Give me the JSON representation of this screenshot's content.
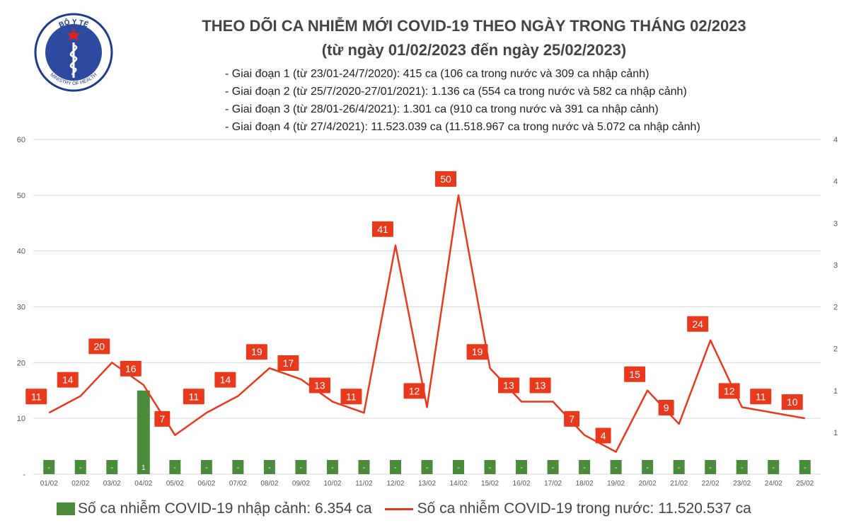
{
  "logo": {
    "top_text": "BỘ Y TẾ",
    "bottom_text": "MINISTRY OF HEALTH"
  },
  "title": {
    "line1": "THEO DÕI CA NHIỄM MỚI COVID-19 THEO NGÀY TRONG THÁNG 02/2023",
    "line2": "(từ ngày 01/02/2023 đến ngày 25/02/2023)"
  },
  "phases": [
    "- Giai đoạn 1 (từ 23/01-24/7/2020): 415 ca (106 ca trong nước và 309 ca nhập cảnh)",
    "- Giai đoạn 2 (từ 25/7/2020-27/01/2021): 1.136 ca (554 ca trong nước và 582 ca nhập cảnh)",
    "- Giai đoạn 3 (từ 28/01-26/4/2021): 1.301 ca (910 ca trong nước và 391 ca nhập cảnh)",
    "- Giai đoạn 4 (từ 27/4/2021): 11.523.039 ca (11.518.967 ca trong nước và 5.072 ca nhập cảnh)"
  ],
  "legend": {
    "bar_label": "Số ca nhiễm COVID-19 nhập cảnh: 6.354 ca",
    "line_label": "Số ca nhiễm COVID-19 trong nước: 11.520.537 ca"
  },
  "colors": {
    "bar": "#4b8b3b",
    "line": "#e8391c",
    "grid": "#d9d9d9",
    "axis_text": "#595959"
  },
  "chart_data": {
    "type": "bar+line",
    "categories": [
      "01/02",
      "02/02",
      "03/02",
      "04/02",
      "05/02",
      "06/02",
      "07/02",
      "08/02",
      "09/02",
      "10/02",
      "11/02",
      "12/02",
      "13/02",
      "14/02",
      "15/02",
      "16/02",
      "17/02",
      "18/02",
      "19/02",
      "20/02",
      "21/02",
      "22/02",
      "23/02",
      "24/02",
      "25/02"
    ],
    "series": [
      {
        "name": "Số ca nhiễm COVID-19 trong nước",
        "type": "line",
        "axis": "left",
        "values": [
          11,
          14,
          20,
          16,
          7,
          11,
          14,
          19,
          17,
          13,
          11,
          41,
          12,
          50,
          19,
          13,
          13,
          7,
          4,
          15,
          9,
          24,
          12,
          11,
          10
        ]
      },
      {
        "name": "Số ca nhiễm COVID-19 nhập cảnh",
        "type": "bar",
        "axis": "right",
        "values": [
          0,
          0,
          0,
          1,
          0,
          0,
          0,
          0,
          0,
          0,
          0,
          0,
          0,
          0,
          0,
          0,
          0,
          0,
          0,
          0,
          0,
          0,
          0,
          0,
          0
        ],
        "labels": [
          "-",
          "-",
          "-",
          "1",
          "-",
          "-",
          "-",
          "-",
          "-",
          "-",
          "-",
          "-",
          "-",
          "-",
          "-",
          "-",
          "-",
          "-",
          "-",
          "-",
          "-",
          "-",
          "-",
          "-",
          "-"
        ]
      }
    ],
    "y_left": {
      "range": [
        0,
        60
      ],
      "ticks": [
        "-",
        "10",
        "20",
        "30",
        "40",
        "50",
        "60"
      ]
    },
    "y_right": {
      "range": [
        0,
        4
      ],
      "ticks": [
        "1",
        "1",
        "2",
        "2",
        "3",
        "3",
        "4",
        "4"
      ]
    },
    "grid": true
  }
}
